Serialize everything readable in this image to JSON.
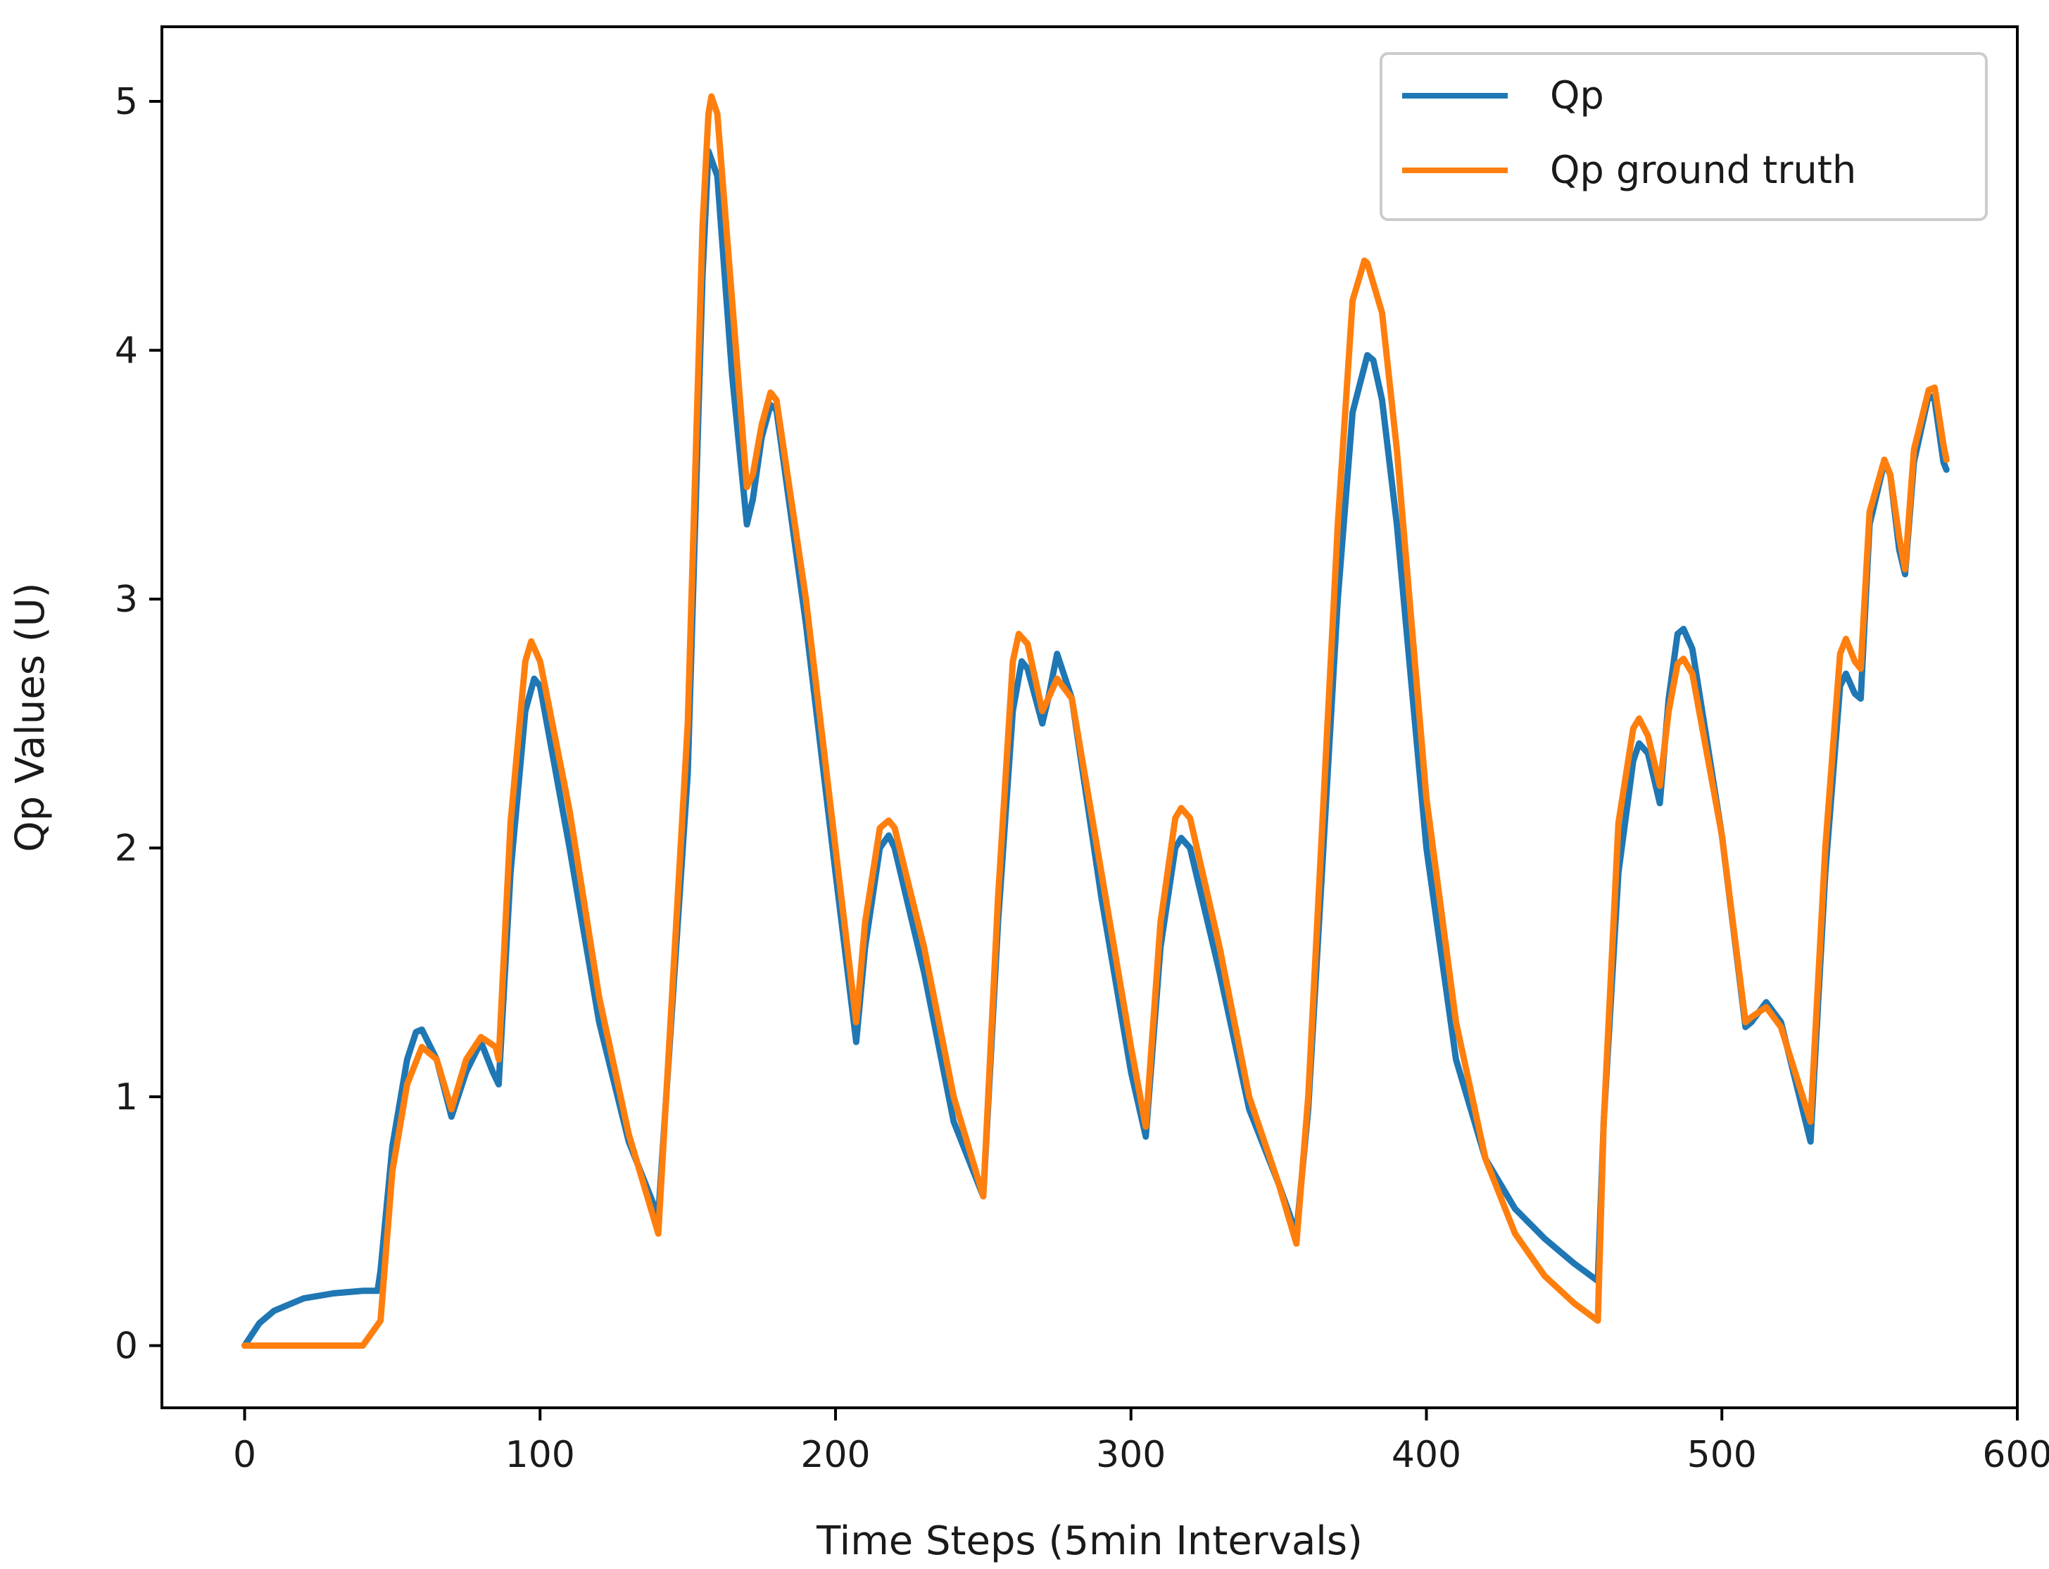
{
  "chart_data": {
    "type": "line",
    "title": "",
    "xlabel": "Time Steps (5min Intervals)",
    "ylabel": "Qp Values (U)",
    "xlim": [
      -28,
      600
    ],
    "ylim": [
      -0.25,
      5.3
    ],
    "xticks": [
      0,
      100,
      200,
      300,
      400,
      500,
      600
    ],
    "yticks": [
      0,
      1,
      2,
      3,
      4,
      5
    ],
    "xtick_labels": [
      "0",
      "100",
      "200",
      "300",
      "400",
      "500",
      "600"
    ],
    "ytick_labels": [
      "0",
      "1",
      "2",
      "3",
      "4",
      "5"
    ],
    "grid": false,
    "legend_position": "top-right",
    "series": [
      {
        "name": "Qp",
        "color": "#1f77b4",
        "x": [
          0,
          5,
          10,
          20,
          30,
          40,
          45,
          46,
          50,
          55,
          58,
          60,
          65,
          70,
          75,
          80,
          84,
          86,
          90,
          95,
          98,
          100,
          110,
          120,
          130,
          140,
          150,
          155,
          157,
          160,
          165,
          170,
          172,
          175,
          178,
          180,
          190,
          200,
          207,
          210,
          215,
          218,
          220,
          230,
          240,
          250,
          255,
          260,
          263,
          265,
          270,
          272,
          275,
          280,
          290,
          300,
          305,
          310,
          315,
          317,
          320,
          330,
          340,
          350,
          356,
          360,
          370,
          375,
          380,
          382,
          385,
          390,
          400,
          410,
          420,
          430,
          440,
          450,
          458,
          460,
          465,
          470,
          472,
          475,
          479,
          482,
          485,
          487,
          490,
          500,
          508,
          510,
          515,
          520,
          530,
          535,
          540,
          542,
          545,
          547,
          550,
          555,
          557,
          560,
          562,
          565,
          570,
          572,
          575,
          576
        ],
        "y": [
          0,
          0.09,
          0.14,
          0.19,
          0.21,
          0.22,
          0.22,
          0.3,
          0.8,
          1.15,
          1.26,
          1.27,
          1.15,
          0.92,
          1.1,
          1.22,
          1.1,
          1.05,
          1.9,
          2.55,
          2.68,
          2.65,
          2.0,
          1.3,
          0.82,
          0.52,
          2.3,
          4.3,
          4.8,
          4.7,
          3.9,
          3.3,
          3.4,
          3.65,
          3.78,
          3.76,
          2.9,
          1.9,
          1.22,
          1.6,
          2.0,
          2.05,
          2.0,
          1.5,
          0.9,
          0.6,
          1.7,
          2.55,
          2.75,
          2.72,
          2.5,
          2.6,
          2.78,
          2.6,
          1.8,
          1.1,
          0.84,
          1.6,
          2.0,
          2.04,
          2.0,
          1.5,
          0.95,
          0.65,
          0.45,
          0.95,
          3.0,
          3.75,
          3.98,
          3.96,
          3.8,
          3.3,
          2.0,
          1.15,
          0.75,
          0.55,
          0.43,
          0.33,
          0.26,
          0.9,
          1.9,
          2.35,
          2.42,
          2.38,
          2.18,
          2.6,
          2.86,
          2.88,
          2.8,
          2.05,
          1.28,
          1.3,
          1.38,
          1.3,
          0.82,
          1.9,
          2.65,
          2.7,
          2.62,
          2.6,
          3.3,
          3.55,
          3.5,
          3.2,
          3.1,
          3.55,
          3.82,
          3.8,
          3.55,
          3.52
        ]
      },
      {
        "name": "Qp ground truth",
        "color": "#ff7f0e",
        "x": [
          0,
          20,
          40,
          46,
          50,
          55,
          60,
          65,
          70,
          75,
          80,
          85,
          86,
          90,
          95,
          97,
          100,
          110,
          120,
          130,
          140,
          150,
          155,
          157,
          158,
          160,
          165,
          170,
          172,
          175,
          178,
          180,
          190,
          200,
          207,
          210,
          215,
          218,
          220,
          230,
          240,
          250,
          255,
          260,
          262,
          265,
          270,
          272,
          275,
          280,
          290,
          300,
          305,
          310,
          315,
          317,
          320,
          330,
          340,
          350,
          356,
          360,
          370,
          375,
          379,
          380,
          385,
          390,
          400,
          410,
          420,
          430,
          440,
          450,
          458,
          460,
          465,
          470,
          472,
          475,
          479,
          482,
          485,
          487,
          490,
          500,
          508,
          510,
          515,
          520,
          530,
          535,
          540,
          542,
          545,
          547,
          550,
          555,
          557,
          560,
          562,
          565,
          570,
          572,
          575,
          576
        ],
        "y": [
          0,
          0,
          0,
          0.1,
          0.7,
          1.05,
          1.2,
          1.15,
          0.95,
          1.15,
          1.24,
          1.2,
          1.15,
          2.1,
          2.75,
          2.83,
          2.75,
          2.15,
          1.4,
          0.85,
          0.45,
          2.5,
          4.5,
          4.95,
          5.02,
          4.95,
          4.2,
          3.45,
          3.5,
          3.7,
          3.83,
          3.8,
          3.0,
          2.0,
          1.3,
          1.7,
          2.08,
          2.11,
          2.08,
          1.6,
          1.0,
          0.6,
          1.8,
          2.75,
          2.86,
          2.82,
          2.55,
          2.6,
          2.68,
          2.6,
          1.9,
          1.2,
          0.88,
          1.7,
          2.12,
          2.16,
          2.12,
          1.6,
          1.0,
          0.65,
          0.41,
          1.0,
          3.3,
          4.2,
          4.36,
          4.35,
          4.15,
          3.6,
          2.2,
          1.3,
          0.75,
          0.45,
          0.28,
          0.17,
          0.1,
          0.9,
          2.1,
          2.48,
          2.52,
          2.45,
          2.25,
          2.55,
          2.74,
          2.76,
          2.7,
          2.05,
          1.3,
          1.32,
          1.36,
          1.28,
          0.9,
          2.0,
          2.78,
          2.84,
          2.75,
          2.72,
          3.35,
          3.56,
          3.5,
          3.25,
          3.12,
          3.6,
          3.84,
          3.85,
          3.62,
          3.56
        ]
      }
    ]
  }
}
